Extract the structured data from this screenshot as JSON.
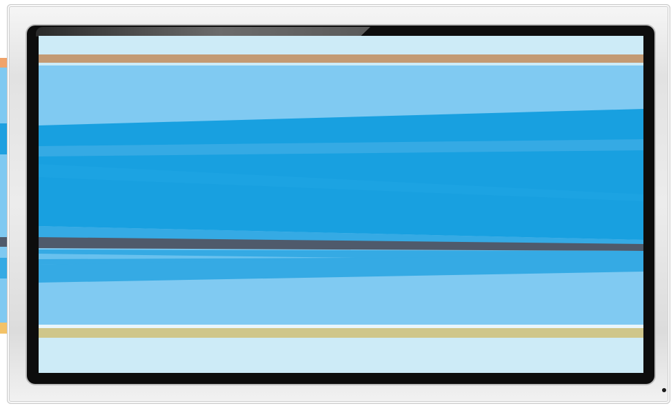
{
  "scene": {
    "description_free": true,
    "colors": {
      "page_background": "#ffffff",
      "bezel": "#e6e6e6",
      "screen_frame": "#0d0d0d",
      "screen_base": "#cdebf7",
      "band_top": "#c39a74",
      "sky_light": "#80caf2",
      "sky_mid": "#35aae4",
      "sky_deep": "#18a0e0",
      "stripe_dark": "#4f5a6b",
      "band_bottom": "#cfc68a"
    }
  }
}
